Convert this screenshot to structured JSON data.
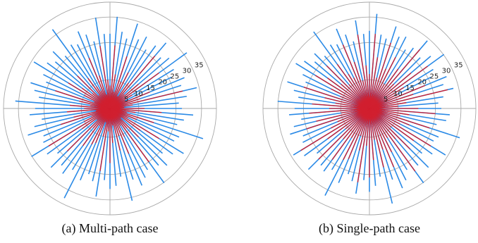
{
  "chart_data": [
    {
      "type": "polar-bar",
      "caption": "(a) Multi-path case",
      "radial_ticks": [
        "5",
        "10",
        "15",
        "20",
        "25",
        "30",
        "35"
      ],
      "rlim": [
        0,
        37
      ],
      "grid": true,
      "series": [
        {
          "color": "#2b8ae6",
          "values": [
            26,
            32,
            27,
            25,
            31,
            26,
            28,
            24,
            27,
            30,
            25,
            27,
            33,
            26,
            24,
            28,
            26,
            31,
            27,
            24,
            25,
            29,
            26,
            24,
            34,
            26,
            25,
            30,
            27,
            24,
            28,
            26,
            32,
            25,
            27,
            29,
            26,
            33,
            24,
            27,
            28,
            25,
            31,
            26,
            24,
            27,
            35,
            25,
            28,
            26,
            29,
            24,
            27,
            32,
            26,
            25,
            30,
            27,
            24,
            28,
            26,
            33,
            25,
            27,
            29,
            24,
            26,
            31,
            27,
            25,
            28,
            24,
            34,
            26,
            25,
            29,
            27,
            24,
            32,
            26
          ]
        },
        {
          "color": "#d11f2f",
          "values": [
            8,
            22,
            12,
            6,
            19,
            10,
            14,
            5,
            11,
            24,
            7,
            13,
            21,
            9,
            6,
            15,
            11,
            26,
            8,
            5,
            12,
            18,
            9,
            6,
            16,
            10,
            7,
            20,
            13,
            5,
            14,
            9,
            23,
            7,
            11,
            17,
            10,
            15,
            6,
            12,
            19,
            8,
            22,
            10,
            5,
            13,
            14,
            7,
            16,
            9,
            21,
            6,
            12,
            25,
            10,
            7,
            18,
            13,
            5,
            15,
            9,
            14,
            7,
            11,
            20,
            6,
            10,
            17,
            12,
            8,
            16,
            6,
            13,
            9,
            7,
            19,
            12,
            5,
            22,
            10
          ]
        }
      ]
    },
    {
      "type": "polar-bar",
      "caption": "(b) Single-path case",
      "radial_ticks": [
        "5",
        "10",
        "15",
        "20",
        "25",
        "30",
        "35"
      ],
      "rlim": [
        0,
        37
      ],
      "grid": true,
      "series": [
        {
          "color": "#2b8ae6",
          "values": [
            27,
            33,
            26,
            25,
            30,
            27,
            28,
            24,
            26,
            31,
            25,
            28,
            32,
            26,
            24,
            29,
            27,
            30,
            26,
            24,
            25,
            28,
            27,
            24,
            33,
            26,
            25,
            31,
            27,
            24,
            29,
            26,
            32,
            25,
            28,
            30,
            26,
            34,
            24,
            27,
            29,
            25,
            30,
            26,
            24,
            28,
            34,
            25,
            27,
            26,
            30,
            24,
            28,
            31,
            26,
            25,
            29,
            27,
            24,
            28,
            26,
            32,
            25,
            27,
            30,
            24,
            26,
            30,
            28,
            25,
            27,
            24,
            33,
            26,
            25,
            30,
            27,
            24,
            31,
            26
          ]
        },
        {
          "color": "#d11f2f",
          "values": [
            12,
            26,
            18,
            11,
            24,
            15,
            20,
            10,
            17,
            27,
            12,
            19,
            25,
            14,
            11,
            21,
            16,
            28,
            13,
            10,
            17,
            23,
            14,
            11,
            22,
            15,
            12,
            25,
            19,
            10,
            20,
            14,
            27,
            12,
            17,
            22,
            15,
            21,
            11,
            18,
            24,
            13,
            26,
            15,
            10,
            19,
            20,
            12,
            22,
            14,
            25,
            11,
            18,
            28,
            15,
            12,
            23,
            19,
            10,
            21,
            14,
            20,
            12,
            16,
            24,
            11,
            15,
            22,
            18,
            13,
            21,
            11,
            19,
            14,
            12,
            24,
            17,
            10,
            26,
            15
          ]
        }
      ]
    }
  ]
}
